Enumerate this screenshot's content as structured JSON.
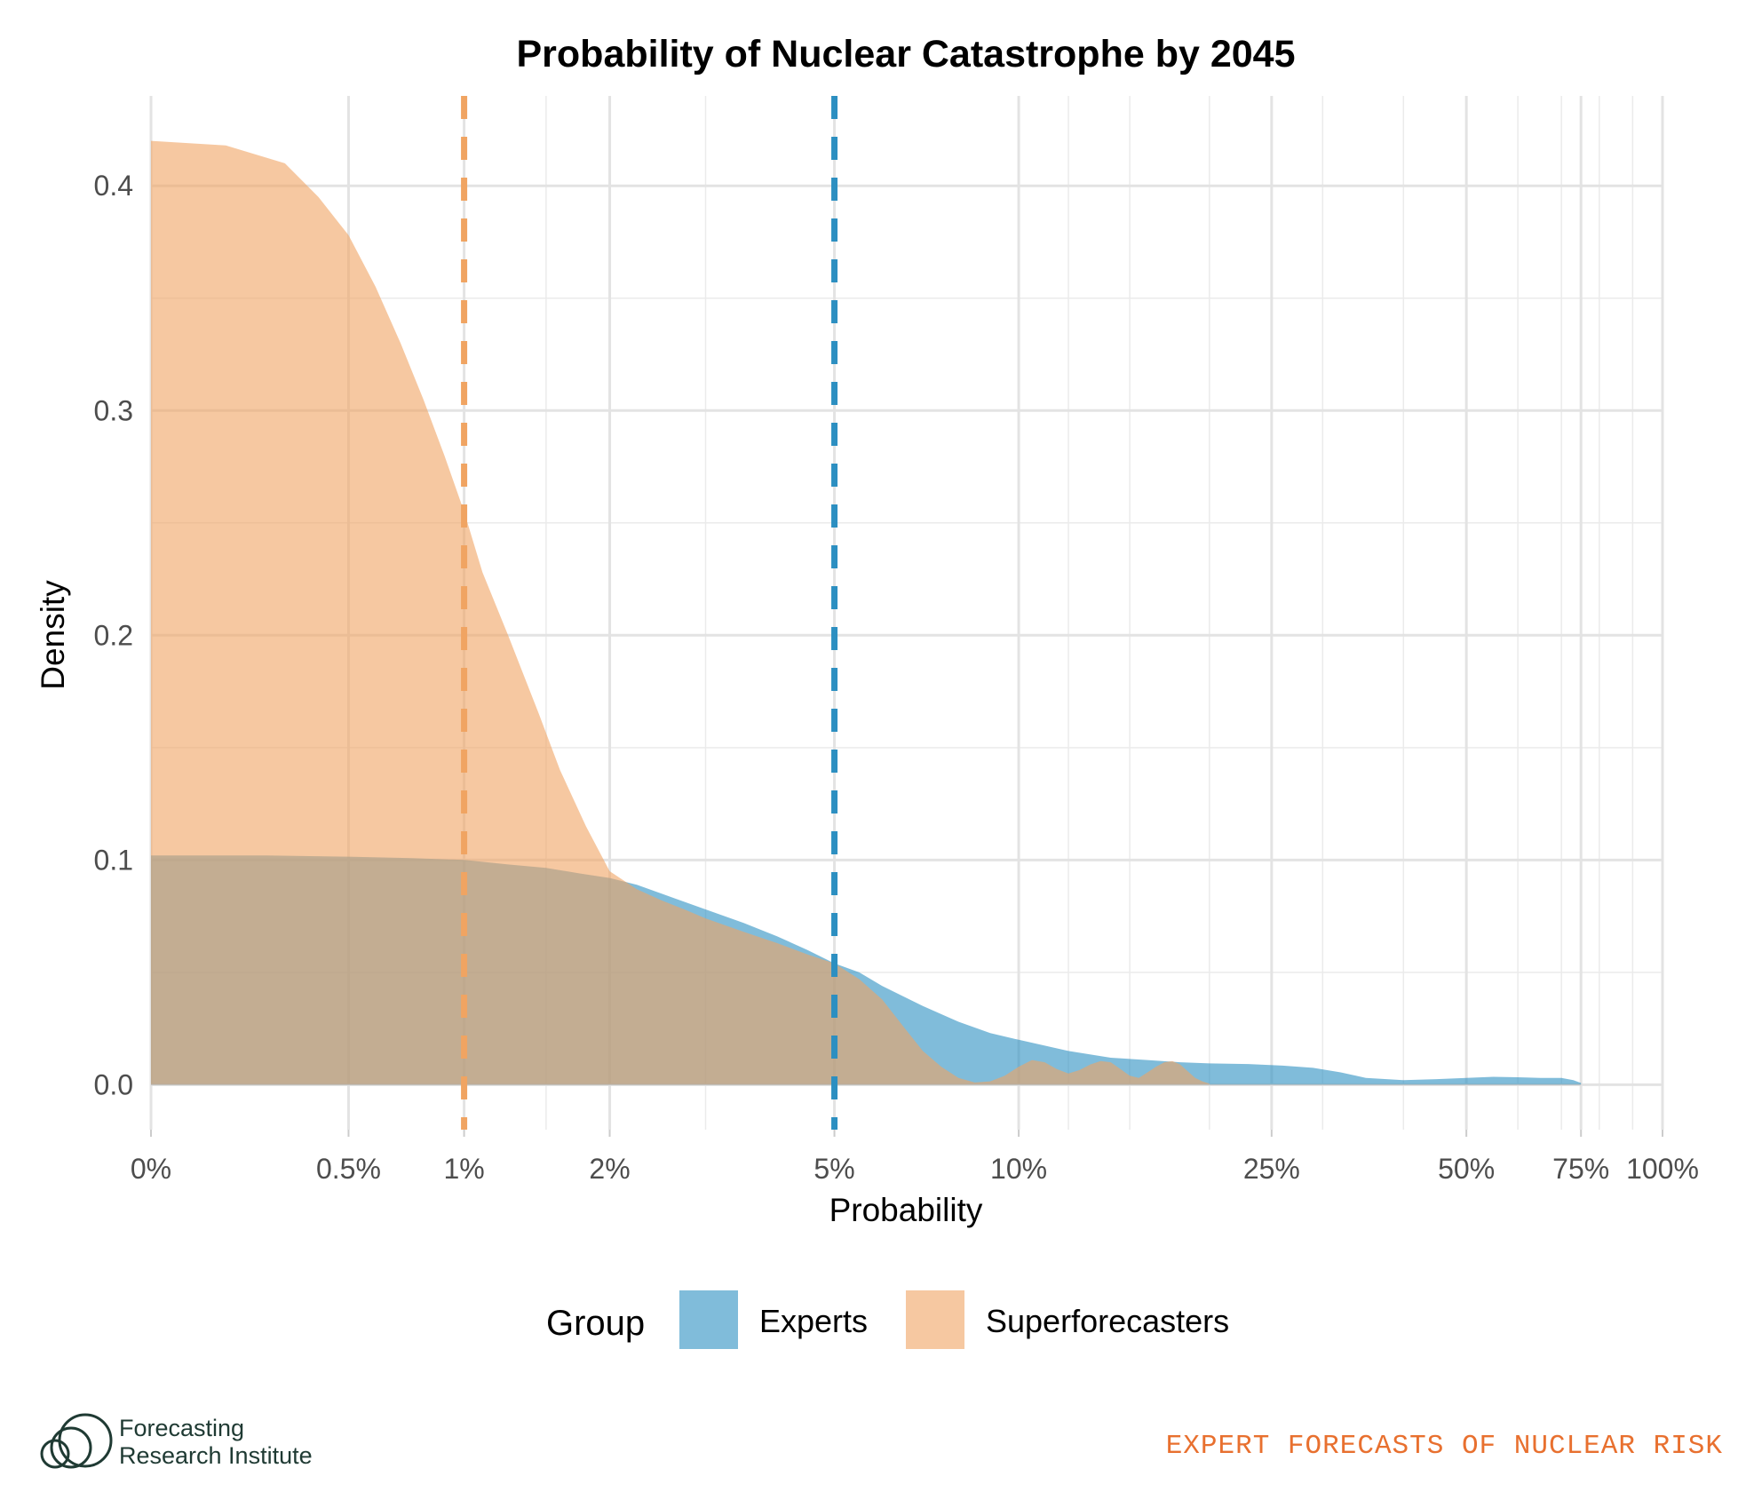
{
  "chart_data": {
    "type": "area",
    "title": "Probability of Nuclear Catastrophe by 2045",
    "xlabel": "Probability",
    "ylabel": "Density",
    "x_scale": "pseudo-log",
    "xlim": [
      0,
      100
    ],
    "ylim": [
      -0.02,
      0.44
    ],
    "x_ticks": [
      {
        "value": 0,
        "label": "0%"
      },
      {
        "value": 0.5,
        "label": "0.5%"
      },
      {
        "value": 1,
        "label": "1%"
      },
      {
        "value": 2,
        "label": "2%"
      },
      {
        "value": 5,
        "label": "5%"
      },
      {
        "value": 10,
        "label": "10%"
      },
      {
        "value": 25,
        "label": "25%"
      },
      {
        "value": 50,
        "label": "50%"
      },
      {
        "value": 75,
        "label": "75%"
      },
      {
        "value": 100,
        "label": "100%"
      }
    ],
    "x_minor_gridlines": [
      1.5,
      3,
      12,
      15,
      20,
      30,
      40,
      60,
      70,
      80,
      90
    ],
    "y_ticks": [
      {
        "value": 0.0,
        "label": "0.0"
      },
      {
        "value": 0.1,
        "label": "0.1"
      },
      {
        "value": 0.2,
        "label": "0.2"
      },
      {
        "value": 0.3,
        "label": "0.3"
      },
      {
        "value": 0.4,
        "label": "0.4"
      }
    ],
    "grid": true,
    "legend": {
      "title": "Group",
      "position": "bottom"
    },
    "series": [
      {
        "name": "Experts",
        "color": "#2c8fc1",
        "median": 5,
        "points": [
          [
            0,
            0.102
          ],
          [
            0.25,
            0.102
          ],
          [
            0.5,
            0.1015
          ],
          [
            0.75,
            0.1008
          ],
          [
            1,
            0.1
          ],
          [
            1.25,
            0.098
          ],
          [
            1.5,
            0.0965
          ],
          [
            1.75,
            0.094
          ],
          [
            2,
            0.092
          ],
          [
            2.25,
            0.089
          ],
          [
            2.5,
            0.085
          ],
          [
            3,
            0.078
          ],
          [
            3.5,
            0.072
          ],
          [
            4,
            0.066
          ],
          [
            4.5,
            0.06
          ],
          [
            5,
            0.054
          ],
          [
            5.5,
            0.05
          ],
          [
            6,
            0.044
          ],
          [
            7,
            0.035
          ],
          [
            8,
            0.028
          ],
          [
            9,
            0.023
          ],
          [
            10,
            0.02
          ],
          [
            12,
            0.015
          ],
          [
            14,
            0.012
          ],
          [
            16,
            0.011
          ],
          [
            18,
            0.01
          ],
          [
            20,
            0.0095
          ],
          [
            23,
            0.0092
          ],
          [
            26,
            0.0085
          ],
          [
            29,
            0.0075
          ],
          [
            32,
            0.0055
          ],
          [
            35,
            0.003
          ],
          [
            40,
            0.002
          ],
          [
            45,
            0.0025
          ],
          [
            50,
            0.003
          ],
          [
            55,
            0.0035
          ],
          [
            60,
            0.0033
          ],
          [
            65,
            0.003
          ],
          [
            70,
            0.003
          ],
          [
            73,
            0.002
          ],
          [
            75,
            0.0008
          ]
        ]
      },
      {
        "name": "Superforecasters",
        "color": "#f0a462",
        "median": 1,
        "points": [
          [
            0,
            0.42
          ],
          [
            0.15,
            0.418
          ],
          [
            0.3,
            0.41
          ],
          [
            0.4,
            0.395
          ],
          [
            0.5,
            0.378
          ],
          [
            0.6,
            0.355
          ],
          [
            0.7,
            0.33
          ],
          [
            0.8,
            0.305
          ],
          [
            0.9,
            0.28
          ],
          [
            1,
            0.255
          ],
          [
            1.1,
            0.228
          ],
          [
            1.25,
            0.2
          ],
          [
            1.45,
            0.165
          ],
          [
            1.6,
            0.14
          ],
          [
            1.8,
            0.115
          ],
          [
            2,
            0.095
          ],
          [
            2.25,
            0.087
          ],
          [
            2.5,
            0.082
          ],
          [
            2.75,
            0.078
          ],
          [
            3,
            0.074
          ],
          [
            3.5,
            0.068
          ],
          [
            4,
            0.063
          ],
          [
            4.5,
            0.058
          ],
          [
            5,
            0.054
          ],
          [
            5.5,
            0.047
          ],
          [
            6,
            0.038
          ],
          [
            6.5,
            0.026
          ],
          [
            7,
            0.015
          ],
          [
            7.5,
            0.008
          ],
          [
            8,
            0.003
          ],
          [
            8.5,
            0.001
          ],
          [
            9,
            0.0015
          ],
          [
            9.5,
            0.004
          ],
          [
            10,
            0.008
          ],
          [
            10.5,
            0.011
          ],
          [
            11,
            0.01
          ],
          [
            11.5,
            0.007
          ],
          [
            12,
            0.005
          ],
          [
            12.5,
            0.0065
          ],
          [
            13,
            0.009
          ],
          [
            13.5,
            0.0105
          ],
          [
            14,
            0.01
          ],
          [
            14.5,
            0.007
          ],
          [
            15,
            0.004
          ],
          [
            15.5,
            0.003
          ],
          [
            16,
            0.0055
          ],
          [
            16.5,
            0.008
          ],
          [
            17,
            0.01
          ],
          [
            17.5,
            0.0105
          ],
          [
            18,
            0.009
          ],
          [
            18.5,
            0.006
          ],
          [
            19,
            0.003
          ],
          [
            19.5,
            0.0015
          ],
          [
            20,
            0.0005
          ]
        ]
      }
    ]
  },
  "legend": {
    "title": "Group",
    "items": [
      {
        "label": "Experts",
        "color": "#2c8fc1"
      },
      {
        "label": "Superforecasters",
        "color": "#f0a462"
      }
    ]
  },
  "footer": {
    "logo_line1": "Forecasting",
    "logo_line2": "Research Institute",
    "tagline": "EXPERT FORECASTS OF NUCLEAR RISK",
    "tagline_color": "#e8702f",
    "logo_color": "#1f3a33"
  }
}
